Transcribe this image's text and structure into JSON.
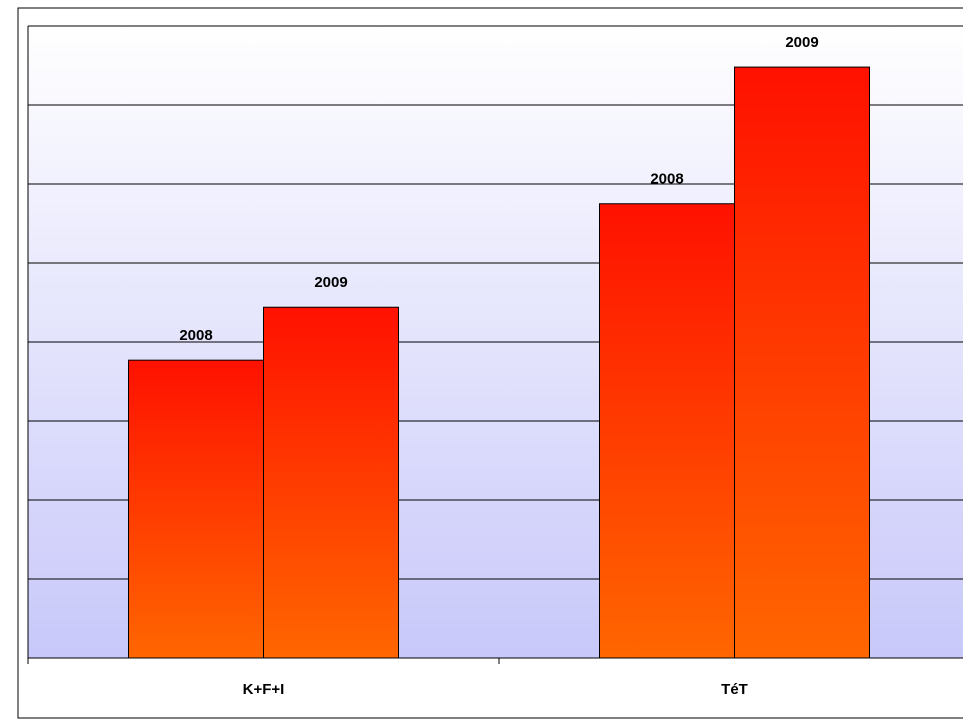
{
  "chart_data": {
    "type": "bar",
    "categories": [
      "K+F+I",
      "TéT"
    ],
    "series": [
      {
        "name": "2008",
        "color": "#ff6600",
        "values": [
          3.77,
          5.75
        ]
      },
      {
        "name": "2009",
        "color": "#ff6600",
        "values": [
          4.44,
          7.48
        ]
      }
    ],
    "ylim": [
      0,
      8
    ],
    "yticks": [
      0,
      1,
      2,
      3,
      4,
      5,
      6,
      7,
      8
    ],
    "grid": true
  }
}
